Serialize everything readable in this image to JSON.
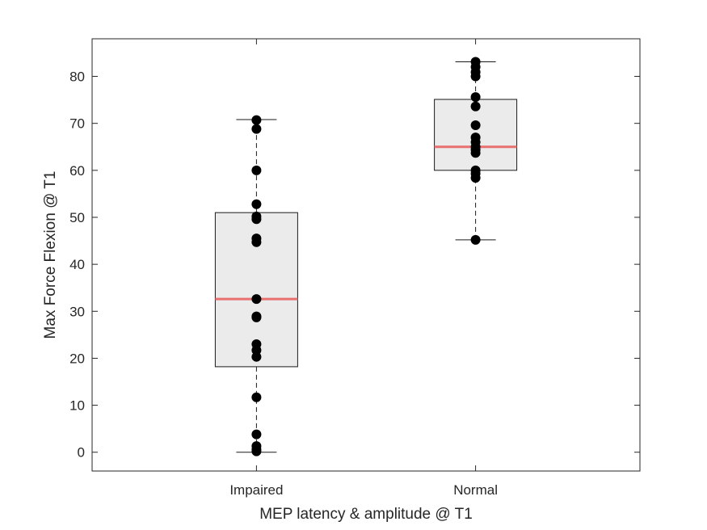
{
  "chart_data": {
    "type": "box",
    "title": "",
    "xlabel": "MEP latency & amplitude @ T1",
    "ylabel": "Max Force Flexion @ T1",
    "ylim": [
      -4,
      88
    ],
    "yticks": [
      0,
      10,
      20,
      30,
      40,
      50,
      60,
      70,
      80
    ],
    "grid": false,
    "categories": [
      "Impaired",
      "Normal"
    ],
    "colors": {
      "box_fill": "#ebebeb",
      "box_edge": "#1a1a1a",
      "median": "#e87070",
      "points": "#000000"
    },
    "boxes": [
      {
        "category": "Impaired",
        "whisker_low": 0,
        "q1": 18.2,
        "median": 32.6,
        "q3": 51.0,
        "whisker_high": 70.8
      },
      {
        "category": "Normal",
        "whisker_low": 45.2,
        "q1": 60.0,
        "median": 65.0,
        "q3": 75.1,
        "whisker_high": 83.1
      }
    ],
    "points": [
      {
        "category": "Impaired",
        "values": [
          70.7,
          68.8,
          60.0,
          52.8,
          50.2,
          49.6,
          45.5,
          44.7,
          32.6,
          28.9,
          28.7,
          23.0,
          21.7,
          20.3,
          11.7,
          3.8,
          1.3,
          0.6,
          0.2
        ]
      },
      {
        "category": "Normal",
        "values": [
          83.1,
          82.0,
          80.9,
          80.0,
          75.6,
          73.6,
          69.6,
          67.0,
          66.0,
          65.0,
          64.4,
          63.7,
          60.0,
          59.3,
          58.4,
          45.2
        ]
      }
    ]
  }
}
